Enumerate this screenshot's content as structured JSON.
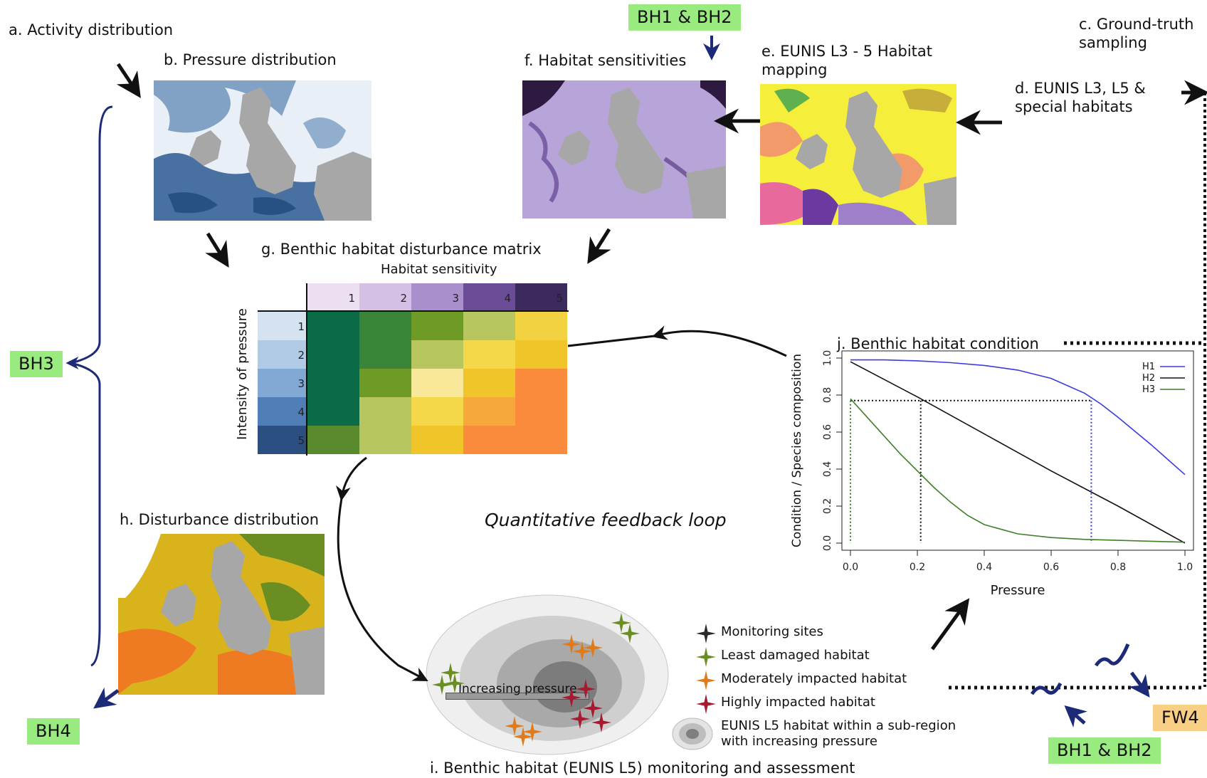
{
  "tags": {
    "bh1_bh2_top": "BH1 & BH2",
    "bh3": "BH3",
    "bh4": "BH4",
    "bh1_bh2_bottom": "BH1 & BH2",
    "fw4": "FW4"
  },
  "panels": {
    "a": "a. Activity distribution",
    "b": "b. Pressure distribution",
    "c_line1": "c. Ground-truth",
    "c_line2": "sampling",
    "d_line1": "d. EUNIS L3, L5 &",
    "d_line2": "special habitats",
    "e_line1": "e. EUNIS L3 - 5 Habitat",
    "e_line2": "mapping",
    "f": "f. Habitat sensitivities",
    "g": "g. Benthic habitat disturbance matrix",
    "h": "h. Disturbance distribution",
    "i": "i. Benthic habitat (EUNIS L5) monitoring and assessment",
    "j": "j. Benthic habitat condition"
  },
  "feedback_label": "Quantitative feedback loop",
  "matrix": {
    "col_title": "Habitat sensitivity",
    "row_title": "Intensity of pressure",
    "col_labels": [
      "1",
      "2",
      "3",
      "4",
      "5"
    ],
    "row_labels": [
      "1",
      "2",
      "3",
      "4",
      "5"
    ],
    "col_colors": [
      "#ecdff2",
      "#d4c0e4",
      "#a98fcb",
      "#6a4d96",
      "#3c2a5e"
    ],
    "row_colors": [
      "#d5e3f1",
      "#b1cbe6",
      "#82a9d4",
      "#4f7fb6",
      "#2a4f80"
    ],
    "cells": [
      [
        "#0a6b46",
        "#3b8538",
        "#6e9b25",
        "#b7c65f",
        "#f3d241"
      ],
      [
        "#0a6b46",
        "#3b8538",
        "#b7c65f",
        "#f5d74a",
        "#f0c52a"
      ],
      [
        "#0a6b46",
        "#6e9b25",
        "#f9e79a",
        "#f0c52a",
        "#fa8b3c"
      ],
      [
        "#0a6b46",
        "#b7c65f",
        "#f5d74a",
        "#f6a83a",
        "#fa8b3c"
      ],
      [
        "#5a8a2e",
        "#b7c65f",
        "#f0c52a",
        "#fa8b3c",
        "#fa8b3c"
      ]
    ]
  },
  "legend_i": {
    "monitoring": "Monitoring sites",
    "least": "Least damaged habitat",
    "moderate": "Moderately impacted habitat",
    "high": "Highly impacted habitat",
    "eunis_line1": "EUNIS L5 habitat within a sub-region",
    "eunis_line2": "with increasing pressure",
    "increasing_pressure": "Increasing pressure",
    "colors": {
      "monitoring": "#2b2b2b",
      "least": "#6b8e23",
      "moderate": "#e07b1c",
      "high": "#a6192e"
    }
  },
  "chart_data": {
    "type": "line",
    "title": "j. Benthic habitat condition",
    "xlabel": "Pressure",
    "ylabel": "Condition / Species composition",
    "xlim": [
      0,
      1
    ],
    "ylim": [
      0,
      1
    ],
    "x_ticks": [
      "0.0",
      "0.2",
      "0.4",
      "0.6",
      "0.8",
      "1.0"
    ],
    "y_ticks": [
      "0.0",
      "0.2",
      "0.4",
      "0.6",
      "0.8",
      "1.0"
    ],
    "legend_position": "top-right",
    "series": [
      {
        "name": "H1",
        "color": "#3a3adf",
        "x": [
          0.0,
          0.1,
          0.2,
          0.3,
          0.4,
          0.5,
          0.6,
          0.7,
          0.75,
          0.8,
          0.9,
          1.0
        ],
        "y": [
          0.99,
          0.99,
          0.985,
          0.975,
          0.96,
          0.935,
          0.89,
          0.81,
          0.75,
          0.68,
          0.53,
          0.37
        ]
      },
      {
        "name": "H2",
        "color": "#111111",
        "x": [
          0.0,
          0.2,
          0.4,
          0.6,
          0.8,
          1.0
        ],
        "y": [
          0.98,
          0.79,
          0.59,
          0.39,
          0.2,
          0.0
        ]
      },
      {
        "name": "H3",
        "color": "#3e7f2a",
        "x": [
          0.0,
          0.05,
          0.1,
          0.15,
          0.2,
          0.25,
          0.3,
          0.35,
          0.4,
          0.5,
          0.6,
          0.7,
          0.8,
          0.9,
          1.0
        ],
        "y": [
          0.78,
          0.68,
          0.58,
          0.48,
          0.39,
          0.3,
          0.22,
          0.15,
          0.1,
          0.05,
          0.03,
          0.02,
          0.015,
          0.01,
          0.005
        ]
      }
    ],
    "reference_y": 0.77,
    "reference_x": [
      0.0,
      0.21,
      0.72
    ]
  }
}
